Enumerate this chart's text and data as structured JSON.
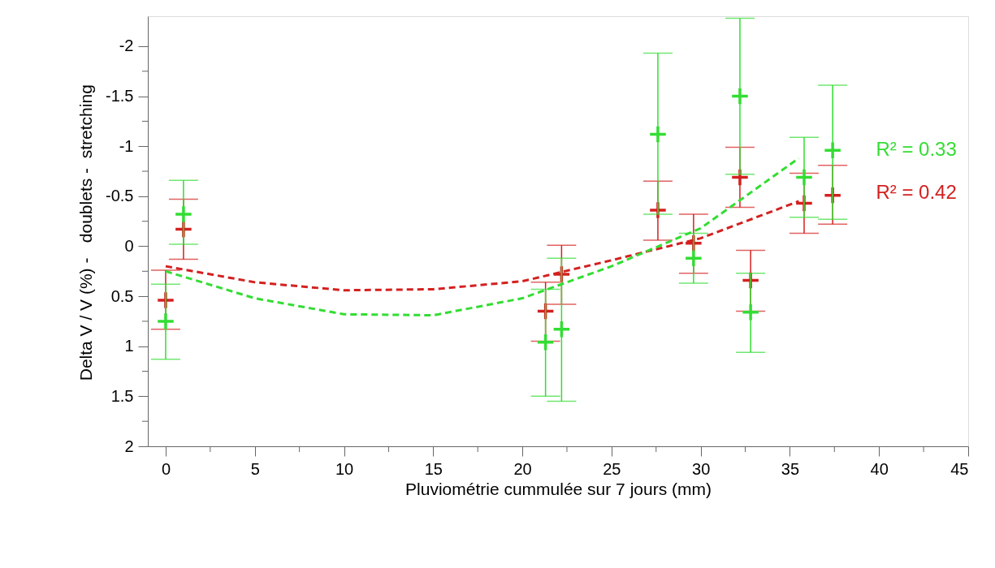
{
  "chart_data": {
    "type": "scatter",
    "xlabel": "Pluviométrie cummulée sur 7 jours (mm)",
    "ylabel": "Delta V / V (%) - doublets - stretching",
    "xlim": [
      -1,
      45
    ],
    "ylim": [
      2,
      -2.3
    ],
    "xticks": [
      0,
      {
        "value": 2.5,
        "label": null
      },
      5,
      {
        "value": 7.5,
        "label": null
      },
      10,
      {
        "value": 12.5,
        "label": null
      },
      15,
      {
        "value": 17.5,
        "label": null
      },
      20,
      {
        "value": 22.5,
        "label": null
      },
      25,
      {
        "value": 27.5,
        "label": null
      },
      30,
      {
        "value": 32.5,
        "label": null
      },
      35,
      {
        "value": 37.5,
        "label": null
      },
      40,
      {
        "value": 42.5,
        "label": null
      },
      45
    ],
    "yticks": [
      -2,
      {
        "value": -1.75,
        "label": null
      },
      -1.5,
      {
        "value": -1.25,
        "label": null
      },
      -1,
      {
        "value": -0.75,
        "label": null
      },
      -0.5,
      {
        "value": -0.25,
        "label": null
      },
      0,
      {
        "value": 0.25,
        "label": null
      },
      0.5,
      {
        "value": 0.75,
        "label": null
      },
      1,
      {
        "value": 1.25,
        "label": null
      },
      1.5,
      {
        "value": 1.75,
        "label": null
      },
      2
    ],
    "grid": false,
    "series": [
      {
        "marker": "cross",
        "color": "#d42020",
        "x": [
          0,
          1,
          21.3,
          22.2,
          27.6,
          29.6,
          32.2,
          32.8,
          35.8,
          37.4
        ],
        "values": [
          0.54,
          -0.17,
          0.65,
          0.28,
          -0.36,
          -0.03,
          -0.69,
          0.34,
          -0.43,
          -0.51
        ],
        "errors": [
          [
            0.24,
            0.83
          ],
          [
            -0.47,
            0.13
          ],
          [
            0.36,
            0.95
          ],
          [
            -0.01,
            0.58
          ],
          [
            -0.65,
            -0.06
          ],
          [
            -0.32,
            0.27
          ],
          [
            -0.99,
            -0.39
          ],
          [
            0.04,
            0.65
          ],
          [
            -0.73,
            -0.13
          ],
          [
            -0.81,
            -0.22
          ]
        ]
      },
      {
        "marker": "cross",
        "color": "#33dd33",
        "x": [
          0,
          1,
          21.3,
          22.2,
          27.6,
          29.6,
          32.2,
          32.8,
          35.8,
          37.4
        ],
        "values": [
          0.75,
          -0.32,
          0.96,
          0.83,
          -1.12,
          0.12,
          -1.5,
          0.66,
          -0.69,
          -0.96
        ],
        "errors": [
          [
            0.38,
            1.13
          ],
          [
            -0.66,
            -0.02
          ],
          [
            0.43,
            1.5
          ],
          [
            0.12,
            1.55
          ],
          [
            -1.93,
            -0.32
          ],
          [
            -0.13,
            0.37
          ],
          [
            -2.28,
            -0.72
          ],
          [
            0.27,
            1.06
          ],
          [
            -1.09,
            -0.29
          ],
          [
            -1.61,
            -0.27
          ]
        ]
      },
      {
        "type": "line",
        "marker": "none",
        "line_style": "dashed",
        "color": "#d42020",
        "x": [
          0,
          5,
          10,
          15,
          20,
          25,
          30,
          35.5
        ],
        "values": [
          0.2,
          0.36,
          0.44,
          0.43,
          0.35,
          0.14,
          -0.08,
          -0.45
        ]
      },
      {
        "type": "line",
        "marker": "none",
        "line_style": "dashed",
        "color": "#33dd33",
        "x": [
          0,
          5,
          10,
          15,
          20,
          25,
          30,
          35.5
        ],
        "values": [
          0.25,
          0.52,
          0.68,
          0.69,
          0.52,
          0.2,
          -0.18,
          -0.88
        ]
      }
    ],
    "annotations": [
      "R² = 0.42",
      "R² = 0.33"
    ]
  }
}
